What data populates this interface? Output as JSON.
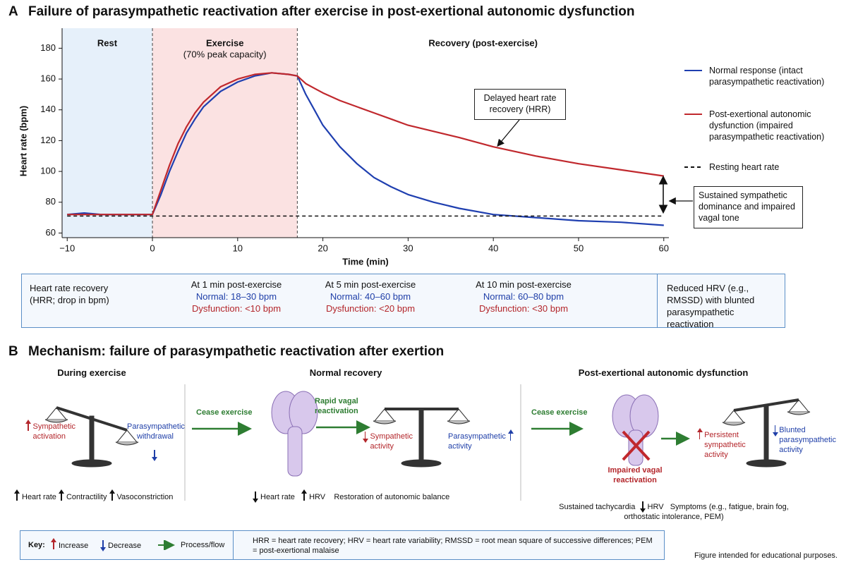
{
  "chart_data": {
    "type": "line",
    "panel_label": "A",
    "title": "Failure of parasympathetic reactivation after exercise in post-exertional autonomic dysfunction",
    "xlabel": "Time (min)",
    "ylabel": "Heart rate (bpm)",
    "x": [
      -10,
      -8,
      -6,
      -4,
      -2,
      0,
      1,
      2,
      3,
      4,
      5,
      6,
      8,
      10,
      12,
      14,
      16,
      17,
      18,
      19,
      20,
      22,
      24,
      26,
      28,
      30,
      33,
      36,
      40,
      45,
      50,
      55,
      60
    ],
    "series": [
      {
        "name": "Normal response",
        "description": "(intact parasympathetic reactivation)",
        "color": "#1f3fb0",
        "values": [
          72,
          73,
          72,
          72,
          72,
          72,
          85,
          100,
          113,
          125,
          134,
          142,
          152,
          158,
          162,
          164,
          163,
          162,
          150,
          140,
          130,
          116,
          105,
          96,
          90,
          85,
          80,
          76,
          72,
          70,
          68,
          67,
          65
        ]
      },
      {
        "name": "Post-exertional autonomic dysfunction",
        "description": "(impaired parasympathetic reactivation)",
        "color": "#c0282d",
        "values": [
          72,
          72,
          72,
          72,
          72,
          72,
          88,
          104,
          118,
          129,
          138,
          145,
          155,
          160,
          163,
          164,
          163,
          162,
          157,
          154,
          151,
          146,
          142,
          138,
          134,
          130,
          126,
          122,
          116,
          110,
          105,
          101,
          97
        ]
      },
      {
        "name": "Resting heart rate",
        "color": "#111111",
        "dashed": true,
        "values": [
          71,
          71,
          71,
          71,
          71,
          71,
          71,
          71,
          71,
          71,
          71,
          71,
          71,
          71,
          71,
          71,
          71,
          71,
          71,
          71,
          71,
          71,
          71,
          71,
          71,
          71,
          71,
          71,
          71,
          71,
          71,
          71,
          71
        ]
      }
    ],
    "regions": [
      {
        "label": "Rest",
        "start": -10.6,
        "end": 0,
        "color": "#e6f0fa"
      },
      {
        "label": "Exercise",
        "sublabel": "(70% peak capacity)",
        "start": 0,
        "end": 17,
        "color": "#fbe2e2",
        "dashed": true
      },
      {
        "label": "Recovery (post-exercise)",
        "start": 17,
        "end": 60.6
      }
    ],
    "annotations": [
      "Delayed heart rate recovery (HRR)",
      "Sustained sympathetic dominance and impaired vagal tone"
    ],
    "xlim": [
      -10.6,
      60.6
    ],
    "ylim": [
      57,
      193
    ],
    "xticks": [
      {
        "value": -10,
        "label": "−10"
      },
      0,
      10,
      20,
      30,
      40,
      50,
      60
    ],
    "yticks": [
      60,
      80,
      100,
      120,
      140,
      160,
      180
    ],
    "legend": "right"
  },
  "hrr_table": {
    "header": "Heart rate recovery (HRR; drop in bpm)",
    "columns": [
      {
        "time": "At 1 min post-exercise",
        "normal": "Normal: 18–30 bpm",
        "dysfunction": "Dysfunction: <10 bpm"
      },
      {
        "time": "At 5 min post-exercise",
        "normal": "Normal: 40–60 bpm",
        "dysfunction": "Dysfunction: <20 bpm"
      },
      {
        "time": "At 10 min post-exercise",
        "normal": "Normal: 60–80 bpm",
        "dysfunction": "Dysfunction: <30 bpm"
      }
    ],
    "note": "Reduced HRV (e.g., RMSSD) with blunted parasympathetic reactivation"
  },
  "panel_b": {
    "label": "B",
    "title": "Mechanism: failure of parasympathetic reactivation after exertion",
    "during_exercise": {
      "title": "During exercise",
      "left": "Sympathetic activation",
      "right": "Parasympathetic withdrawal",
      "effects": [
        "Heart rate",
        "Contractility",
        "Vasoconstriction"
      ]
    },
    "normal_recovery": {
      "title": "Normal recovery",
      "step1": "Cease exercise",
      "step2": "Rapid vagal reactivation",
      "left": "Sympathetic activity",
      "right": "Parasympathetic activity",
      "effects": [
        "Heart rate",
        "HRV"
      ],
      "summary": "Restoration of autonomic balance"
    },
    "dysfunction": {
      "title": "Post-exertional autonomic dysfunction",
      "step1": "Cease exercise",
      "brain_label": "Impaired vagal reactivation",
      "left": "Persistent sympathetic activity",
      "right": "Blunted parasympathetic activity",
      "effects": [
        "Sustained tachycardia",
        "HRV",
        "Symptoms (e.g., fatigue, brain fog, orthostatic intolerance, PEM)"
      ]
    }
  },
  "key": {
    "title": "Key:",
    "items": [
      "Increase",
      "Decrease",
      "Process/flow"
    ],
    "abbreviations": "HRR = heart rate recovery; HRV = heart rate variability; RMSSD = root mean square of successive differences; PEM = post-exertional malaise"
  },
  "footnote": "Figure intended for educational purposes."
}
